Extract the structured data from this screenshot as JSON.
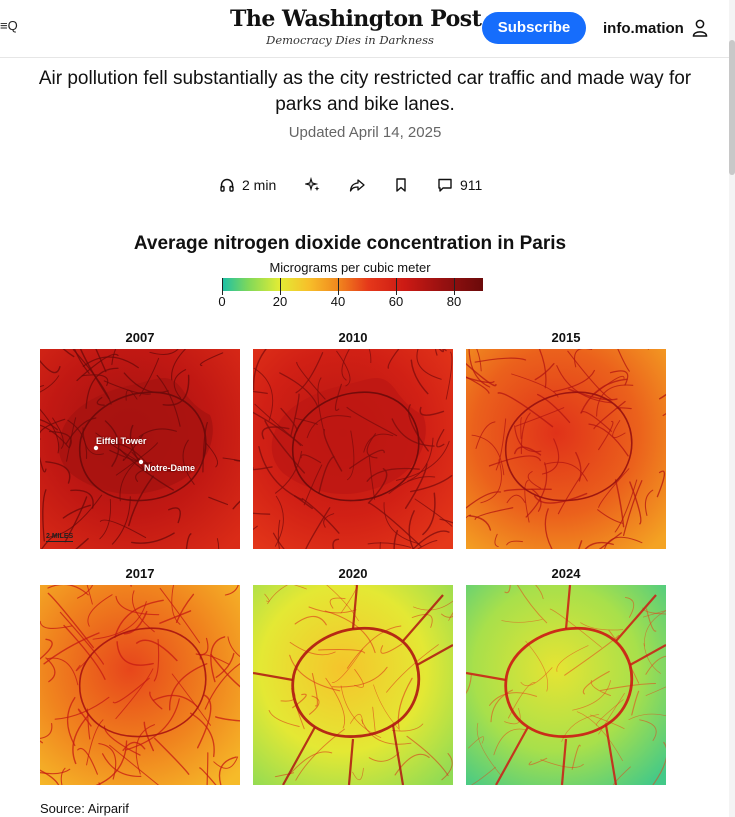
{
  "header": {
    "menu_label": "≡Q",
    "logo": "The Washington Post",
    "tagline": "Democracy Dies in Darkness",
    "subscribe_label": "Subscribe",
    "account_name": "info.mation",
    "account_icon": "user-icon"
  },
  "article": {
    "lede": "Air pollution fell substantially as the city restricted car traffic and made way for parks and bike lanes.",
    "updated": "Updated April 14, 2025"
  },
  "actions": {
    "listen": {
      "icon": "headphones-icon",
      "label": "2 min"
    },
    "summary": {
      "icon": "sparkle-icon"
    },
    "share": {
      "icon": "share-icon"
    },
    "save": {
      "icon": "bookmark-icon"
    },
    "comments": {
      "icon": "comment-icon",
      "label": "911"
    }
  },
  "chart": {
    "title": "Average nitrogen dioxide concentration in Paris",
    "legend_title": "Micrograms per cubic meter",
    "legend_ticks": [
      "0",
      "20",
      "40",
      "60",
      "80"
    ],
    "scale_label": "2 MILES",
    "source": "Source: Airparif",
    "colors": {
      "low": "#1bbfa7",
      "mid": "#e2ec35",
      "high": "#e5381a",
      "max": "#6b0a0a"
    }
  },
  "chart_data": {
    "type": "heatmap",
    "title": "Average nitrogen dioxide concentration in Paris",
    "colorbar_label": "Micrograms per cubic meter",
    "colorbar_range": [
      0,
      90
    ],
    "colorbar_ticks": [
      0,
      20,
      40,
      60,
      80
    ],
    "panels": [
      {
        "year": "2007",
        "annotations": [
          "Eiffel Tower",
          "Notre-Dame"
        ],
        "level": 0.78
      },
      {
        "year": "2010",
        "annotations": [],
        "level": 0.72
      },
      {
        "year": "2015",
        "annotations": [],
        "level": 0.55
      },
      {
        "year": "2017",
        "annotations": [],
        "level": 0.5
      },
      {
        "year": "2020",
        "annotations": [],
        "level": 0.28
      },
      {
        "year": "2024",
        "annotations": [],
        "level": 0.2
      }
    ]
  }
}
